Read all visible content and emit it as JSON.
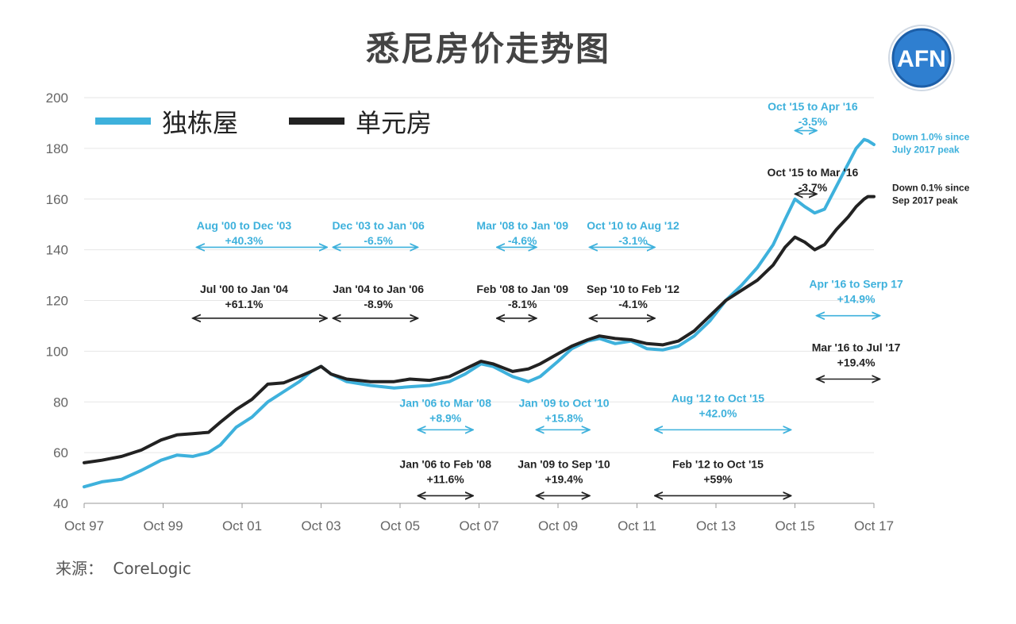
{
  "title": "悉尼房价走势图",
  "logo_text": "AFN",
  "source": {
    "label": "来源：",
    "value": "CoreLogic"
  },
  "colors": {
    "house": "#3eb1dc",
    "unit": "#222222",
    "logo_ring": "#3a8fd6"
  },
  "chart_data": {
    "type": "line",
    "title": "悉尼房价走势图",
    "xlabel": "",
    "ylabel": "",
    "ylim": [
      40,
      200
    ],
    "yticks": [
      40,
      60,
      80,
      100,
      120,
      140,
      160,
      180,
      200
    ],
    "xlim": [
      1997.75,
      2017.75
    ],
    "xticks": [
      {
        "x": 1997.75,
        "label": "Oct 97"
      },
      {
        "x": 1999.75,
        "label": "Oct 99"
      },
      {
        "x": 2001.75,
        "label": "Oct 01"
      },
      {
        "x": 2003.75,
        "label": "Oct 03"
      },
      {
        "x": 2005.75,
        "label": "Oct 05"
      },
      {
        "x": 2007.75,
        "label": "Oct 07"
      },
      {
        "x": 2009.75,
        "label": "Oct 09"
      },
      {
        "x": 2011.75,
        "label": "Oct 11"
      },
      {
        "x": 2013.75,
        "label": "Oct 13"
      },
      {
        "x": 2015.75,
        "label": "Oct 15"
      },
      {
        "x": 2017.75,
        "label": "Oct 17"
      }
    ],
    "grid": true,
    "legend": "top-left",
    "series": [
      {
        "name": "独栋屋",
        "color": "#3eb1dc",
        "points": [
          [
            1997.75,
            46.5
          ],
          [
            1998.2,
            48.5
          ],
          [
            1998.7,
            49.5
          ],
          [
            1999.2,
            53
          ],
          [
            1999.7,
            57
          ],
          [
            2000.1,
            59
          ],
          [
            2000.5,
            58.5
          ],
          [
            2000.9,
            60
          ],
          [
            2001.2,
            63
          ],
          [
            2001.6,
            70
          ],
          [
            2002.0,
            74
          ],
          [
            2002.4,
            80
          ],
          [
            2002.8,
            84
          ],
          [
            2003.2,
            88
          ],
          [
            2003.5,
            92
          ],
          [
            2003.75,
            94
          ],
          [
            2004.0,
            91
          ],
          [
            2004.4,
            88
          ],
          [
            2005.0,
            86.5
          ],
          [
            2005.6,
            85.5
          ],
          [
            2006.0,
            86
          ],
          [
            2006.5,
            86.5
          ],
          [
            2007.0,
            88
          ],
          [
            2007.4,
            91
          ],
          [
            2007.8,
            95
          ],
          [
            2008.1,
            94
          ],
          [
            2008.6,
            90
          ],
          [
            2009.0,
            88
          ],
          [
            2009.3,
            90
          ],
          [
            2009.75,
            96
          ],
          [
            2010.1,
            101
          ],
          [
            2010.5,
            104
          ],
          [
            2010.8,
            105
          ],
          [
            2011.2,
            103
          ],
          [
            2011.6,
            104
          ],
          [
            2012.0,
            101
          ],
          [
            2012.4,
            100.5
          ],
          [
            2012.8,
            102
          ],
          [
            2013.2,
            106
          ],
          [
            2013.6,
            112
          ],
          [
            2014.0,
            120
          ],
          [
            2014.4,
            126
          ],
          [
            2014.8,
            133
          ],
          [
            2015.2,
            142
          ],
          [
            2015.5,
            152
          ],
          [
            2015.75,
            160
          ],
          [
            2016.0,
            157
          ],
          [
            2016.25,
            154.5
          ],
          [
            2016.5,
            156
          ],
          [
            2016.8,
            165
          ],
          [
            2017.1,
            174
          ],
          [
            2017.3,
            180
          ],
          [
            2017.5,
            183.5
          ],
          [
            2017.6,
            183
          ],
          [
            2017.75,
            181.5
          ]
        ]
      },
      {
        "name": "单元房",
        "color": "#222222",
        "points": [
          [
            1997.75,
            56
          ],
          [
            1998.2,
            57
          ],
          [
            1998.7,
            58.5
          ],
          [
            1999.2,
            61
          ],
          [
            1999.7,
            65
          ],
          [
            2000.1,
            67
          ],
          [
            2000.5,
            67.5
          ],
          [
            2000.9,
            68
          ],
          [
            2001.2,
            72
          ],
          [
            2001.6,
            77
          ],
          [
            2002.0,
            81
          ],
          [
            2002.4,
            87
          ],
          [
            2002.8,
            87.5
          ],
          [
            2003.2,
            90
          ],
          [
            2003.5,
            92
          ],
          [
            2003.75,
            94
          ],
          [
            2004.0,
            91
          ],
          [
            2004.4,
            89
          ],
          [
            2005.0,
            88
          ],
          [
            2005.6,
            88
          ],
          [
            2006.0,
            89
          ],
          [
            2006.5,
            88.5
          ],
          [
            2007.0,
            90
          ],
          [
            2007.4,
            93
          ],
          [
            2007.8,
            96
          ],
          [
            2008.1,
            95
          ],
          [
            2008.6,
            92
          ],
          [
            2009.0,
            93
          ],
          [
            2009.3,
            95
          ],
          [
            2009.75,
            99
          ],
          [
            2010.1,
            102
          ],
          [
            2010.5,
            104.5
          ],
          [
            2010.8,
            106
          ],
          [
            2011.2,
            105
          ],
          [
            2011.6,
            104.5
          ],
          [
            2012.0,
            103
          ],
          [
            2012.4,
            102.5
          ],
          [
            2012.8,
            104
          ],
          [
            2013.2,
            108
          ],
          [
            2013.6,
            114
          ],
          [
            2014.0,
            120
          ],
          [
            2014.4,
            124
          ],
          [
            2014.8,
            128
          ],
          [
            2015.2,
            134
          ],
          [
            2015.5,
            141
          ],
          [
            2015.75,
            145
          ],
          [
            2016.0,
            143
          ],
          [
            2016.25,
            140
          ],
          [
            2016.5,
            142
          ],
          [
            2016.8,
            148
          ],
          [
            2017.1,
            153
          ],
          [
            2017.3,
            157
          ],
          [
            2017.5,
            160
          ],
          [
            2017.6,
            161
          ],
          [
            2017.75,
            161
          ]
        ]
      }
    ],
    "annotations": [
      {
        "series": "独栋屋",
        "line1": "Aug '00 to Dec '03",
        "line2": "+40.3%",
        "x1": 2000.6,
        "x2": 2003.9,
        "lx": 2001.8,
        "ly": 148,
        "ay": 141
      },
      {
        "series": "独栋屋",
        "line1": "Dec '03 to Jan '06",
        "line2": "-6.5%",
        "x1": 2004.05,
        "x2": 2006.2,
        "lx": 2005.2,
        "ly": 148,
        "ay": 141
      },
      {
        "series": "独栋屋",
        "line1": "Mar '08 to Jan '09",
        "line2": "-4.6%",
        "x1": 2008.2,
        "x2": 2009.2,
        "lx": 2008.85,
        "ly": 148,
        "ay": 141
      },
      {
        "series": "独栋屋",
        "line1": "Oct '10 to Aug '12",
        "line2": "-3.1%",
        "x1": 2010.55,
        "x2": 2012.2,
        "lx": 2011.65,
        "ly": 148,
        "ay": 141
      },
      {
        "series": "独栋屋",
        "line1": "Jan '06 to Mar '08",
        "line2": "+8.9%",
        "x1": 2006.2,
        "x2": 2007.6,
        "lx": 2006.9,
        "ly": 78,
        "ay": 69
      },
      {
        "series": "独栋屋",
        "line1": "Jan '09 to Oct '10",
        "line2": "+15.8%",
        "x1": 2009.2,
        "x2": 2010.55,
        "lx": 2009.9,
        "ly": 78,
        "ay": 69
      },
      {
        "series": "独栋屋",
        "line1": "Aug '12 to Oct '15",
        "line2": "+42.0%",
        "x1": 2012.2,
        "x2": 2015.65,
        "lx": 2013.8,
        "ly": 80,
        "ay": 69
      },
      {
        "series": "独栋屋",
        "line1": "Oct '15 to Apr '16",
        "line2": "-3.5%",
        "x1": 2015.75,
        "x2": 2016.3,
        "lx": 2016.2,
        "ly": 195,
        "ay": 187
      },
      {
        "series": "独栋屋",
        "line1": "Apr '16 to Serp 17",
        "line2": "+14.9%",
        "x1": 2016.3,
        "x2": 2017.9,
        "lx": 2017.3,
        "ly": 125,
        "ay": 114
      },
      {
        "series": "单元房",
        "line1": "Jul '00 to Jan '04",
        "line2": "+61.1%",
        "x1": 2000.5,
        "x2": 2003.9,
        "lx": 2001.8,
        "ly": 123,
        "ay": 113
      },
      {
        "series": "单元房",
        "line1": "Jan '04 to Jan '06",
        "line2": "-8.9%",
        "x1": 2004.05,
        "x2": 2006.2,
        "lx": 2005.2,
        "ly": 123,
        "ay": 113
      },
      {
        "series": "单元房",
        "line1": "Feb '08 to Jan '09",
        "line2": "-8.1%",
        "x1": 2008.2,
        "x2": 2009.2,
        "lx": 2008.85,
        "ly": 123,
        "ay": 113
      },
      {
        "series": "单元房",
        "line1": "Sep '10 to Feb '12",
        "line2": "-4.1%",
        "x1": 2010.55,
        "x2": 2012.2,
        "lx": 2011.65,
        "ly": 123,
        "ay": 113
      },
      {
        "series": "单元房",
        "line1": "Jan '06 to Feb '08",
        "line2": "+11.6%",
        "x1": 2006.2,
        "x2": 2007.6,
        "lx": 2006.9,
        "ly": 54,
        "ay": 43
      },
      {
        "series": "单元房",
        "line1": "Jan '09 to Sep '10",
        "line2": "+19.4%",
        "x1": 2009.2,
        "x2": 2010.55,
        "lx": 2009.9,
        "ly": 54,
        "ay": 43
      },
      {
        "series": "单元房",
        "line1": "Feb '12 to Oct '15",
        "line2": "+59%",
        "x1": 2012.2,
        "x2": 2015.65,
        "lx": 2013.8,
        "ly": 54,
        "ay": 43
      },
      {
        "series": "单元房",
        "line1": "Oct '15 to Mar '16",
        "line2": "-3.7%",
        "x1": 2015.75,
        "x2": 2016.3,
        "lx": 2016.2,
        "ly": 169,
        "ay": 162
      },
      {
        "series": "单元房",
        "line1": "Mar '16 to Jul '17",
        "line2": "+19.4%",
        "x1": 2016.3,
        "x2": 2017.9,
        "lx": 2017.3,
        "ly": 100,
        "ay": 89
      }
    ],
    "end_labels": [
      {
        "series": "独栋屋",
        "line1": "Down 1.0% since",
        "line2": "July 2017 peak",
        "y": 182
      },
      {
        "series": "单元房",
        "line1": "Down 0.1% since",
        "line2": "Sep 2017 peak",
        "y": 162
      }
    ]
  }
}
